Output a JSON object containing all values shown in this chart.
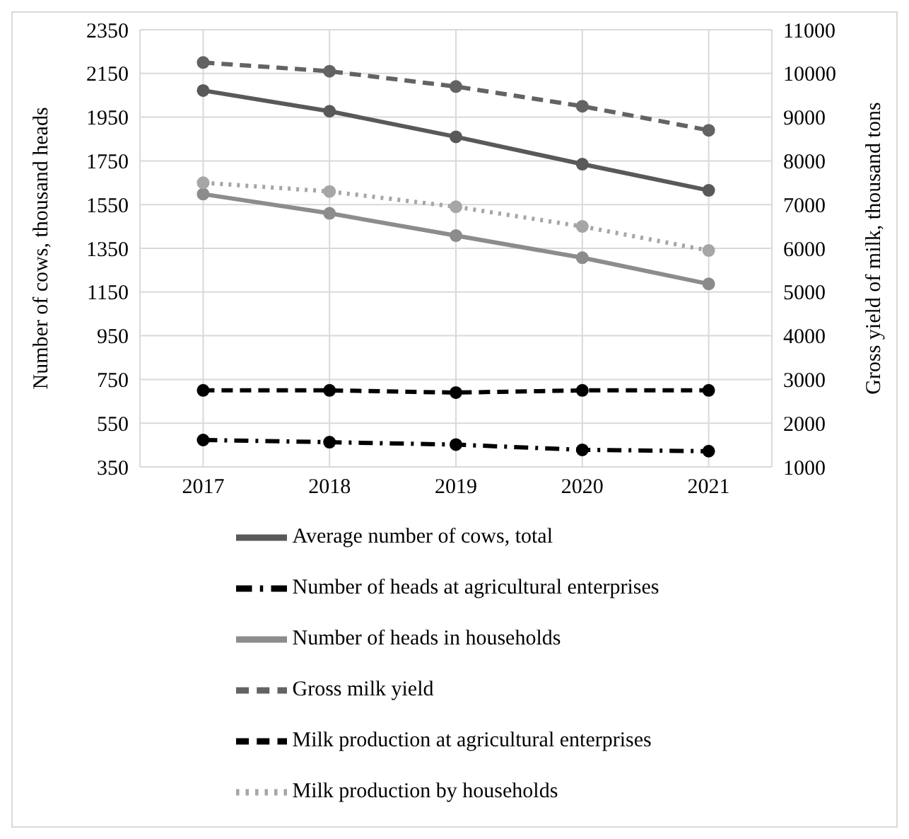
{
  "chart_data": {
    "type": "line",
    "ylabel": "Number of cows, thousand heads",
    "y2label": "Gross yield of milk, thousand tons",
    "categories": [
      "2017",
      "2018",
      "2019",
      "2020",
      "2021"
    ],
    "ylim": [
      350,
      2350
    ],
    "yticks": [
      350,
      550,
      750,
      950,
      1150,
      1350,
      1550,
      1750,
      1950,
      2150,
      2350
    ],
    "y2lim": [
      1000,
      11000
    ],
    "y2ticks": [
      1000,
      2000,
      3000,
      4000,
      5000,
      6000,
      7000,
      8000,
      9000,
      10000,
      11000
    ],
    "grid": true,
    "legend": "bottom",
    "marker": "circle",
    "series": [
      {
        "name": "Average number of cows, total",
        "color": "#595959",
        "line_style": "solid",
        "values": [
          2072,
          1977,
          1860,
          1735,
          1615
        ]
      },
      {
        "name": "Number of heads at agricultural enterprises",
        "color": "#000000",
        "line_style": "dashdot",
        "values": [
          473,
          463,
          452,
          428,
          422
        ]
      },
      {
        "name": "Number of heads in households",
        "color": "#8c8c8c",
        "line_style": "solid",
        "values": [
          1598,
          1510,
          1408,
          1307,
          1187
        ]
      },
      {
        "name": "Gross milk yield",
        "color": "#636363",
        "line_style": "dashed",
        "axis": "y2",
        "values": [
          10250,
          10050,
          9700,
          9250,
          8700
        ]
      },
      {
        "name": "Milk production at agricultural enterprises",
        "color": "#000000",
        "line_style": "dashed",
        "axis": "y2",
        "values": [
          2750,
          2750,
          2700,
          2750,
          2750
        ]
      },
      {
        "name": "Milk production by households",
        "color": "#a6a6a6",
        "line_style": "dotted",
        "axis": "y2",
        "values": [
          7500,
          7300,
          6950,
          6500,
          5950
        ]
      }
    ]
  }
}
